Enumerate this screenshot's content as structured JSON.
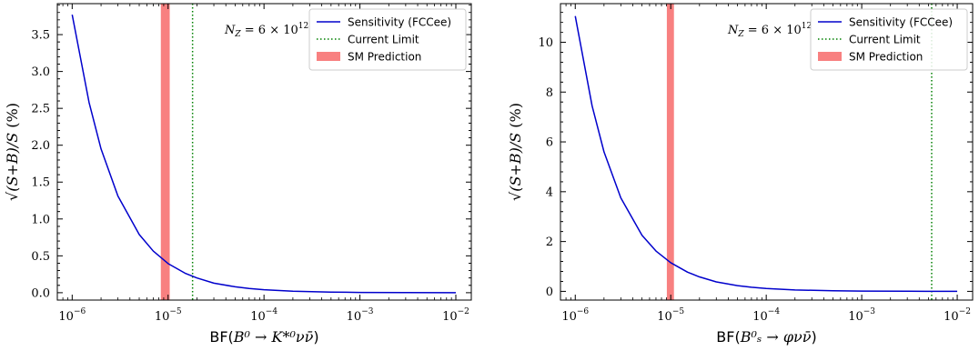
{
  "chart_data": [
    {
      "type": "line",
      "xscale": "log",
      "xlim": [
        7e-07,
        0.0145
      ],
      "ylim": [
        -0.1,
        3.92
      ],
      "xticks": [
        1e-06,
        1e-05,
        0.0001,
        0.001,
        0.01
      ],
      "xtick_labels": [
        {
          "base": "10",
          "exp": "−6"
        },
        {
          "base": "10",
          "exp": "−5"
        },
        {
          "base": "10",
          "exp": "−4"
        },
        {
          "base": "10",
          "exp": "−3"
        },
        {
          "base": "10",
          "exp": "−2"
        }
      ],
      "yticks": [
        0.0,
        0.5,
        1.0,
        1.5,
        2.0,
        2.5,
        3.0,
        3.5
      ],
      "ytick_labels": [
        "0.0",
        "0.5",
        "1.0",
        "1.5",
        "2.0",
        "2.5",
        "3.0",
        "3.5"
      ],
      "xlabel": {
        "prefix": "BF(",
        "math": "B⁰ → K*⁰νν̄",
        "suffix": ")"
      },
      "ylabel": {
        "math": "√(S+B)/S",
        "suffix": " (%)"
      },
      "annotation": {
        "lhs": "N",
        "sub": "Z",
        "rhs": " = 6 × 10",
        "exp": "12"
      },
      "legend": {
        "position": "top-right",
        "entries": [
          {
            "label": "Sensitivity (FCCee)",
            "style": "line",
            "color": "#0000cc"
          },
          {
            "label": "Current Limit",
            "style": "dotted",
            "color": "#008000"
          },
          {
            "label": "SM Prediction",
            "style": "patch",
            "color": "#f88080"
          }
        ]
      },
      "series": [
        {
          "name": "Sensitivity (FCCee)",
          "kind": "curve",
          "color": "#0000cc",
          "x": [
            1e-06,
            1.5e-06,
            2e-06,
            3e-06,
            5e-06,
            7e-06,
            1e-05,
            1.5e-05,
            2e-05,
            3e-05,
            5e-05,
            7e-05,
            0.0001,
            0.0002,
            0.0005,
            0.001,
            0.003,
            0.01
          ],
          "y": [
            3.77,
            2.58,
            1.95,
            1.31,
            0.79,
            0.565,
            0.395,
            0.265,
            0.2,
            0.13,
            0.08,
            0.057,
            0.04,
            0.02,
            0.008,
            0.004,
            0.0013,
            0.0004
          ]
        },
        {
          "name": "Current Limit",
          "kind": "vline",
          "style": "dotted",
          "color": "#008000",
          "x": 1.8e-05
        },
        {
          "name": "SM Prediction",
          "kind": "vband",
          "color": "#f88080",
          "x": [
            8.4e-06,
            1.04e-05
          ]
        }
      ]
    },
    {
      "type": "line",
      "xscale": "log",
      "xlim": [
        7e-07,
        0.0145
      ],
      "ylim": [
        -0.35,
        11.55
      ],
      "xticks": [
        1e-06,
        1e-05,
        0.0001,
        0.001,
        0.01
      ],
      "xtick_labels": [
        {
          "base": "10",
          "exp": "−6"
        },
        {
          "base": "10",
          "exp": "−5"
        },
        {
          "base": "10",
          "exp": "−4"
        },
        {
          "base": "10",
          "exp": "−3"
        },
        {
          "base": "10",
          "exp": "−2"
        }
      ],
      "yticks": [
        0,
        2,
        4,
        6,
        8,
        10
      ],
      "ytick_labels": [
        "0",
        "2",
        "4",
        "6",
        "8",
        "10"
      ],
      "xlabel": {
        "prefix": "BF(",
        "math": "B⁰ₛ → φνν̄",
        "suffix": ")"
      },
      "ylabel": {
        "math": "√(S+B)/S",
        "suffix": " (%)"
      },
      "annotation": {
        "lhs": "N",
        "sub": "Z",
        "rhs": " = 6 × 10",
        "exp": "12"
      },
      "legend": {
        "position": "top-right",
        "entries": [
          {
            "label": "Sensitivity (FCCee)",
            "style": "line",
            "color": "#0000cc"
          },
          {
            "label": "Current Limit",
            "style": "dotted",
            "color": "#008000"
          },
          {
            "label": "SM Prediction",
            "style": "patch",
            "color": "#f88080"
          }
        ]
      },
      "series": [
        {
          "name": "Sensitivity (FCCee)",
          "kind": "curve",
          "color": "#0000cc",
          "x": [
            1e-06,
            1.5e-06,
            2e-06,
            3e-06,
            5e-06,
            7e-06,
            1e-05,
            1.5e-05,
            2e-05,
            3e-05,
            5e-05,
            7e-05,
            0.0001,
            0.0002,
            0.0005,
            0.001,
            0.003,
            0.01
          ],
          "y": [
            11.05,
            7.45,
            5.6,
            3.75,
            2.25,
            1.62,
            1.15,
            0.77,
            0.58,
            0.38,
            0.23,
            0.165,
            0.115,
            0.058,
            0.023,
            0.012,
            0.004,
            0.0012
          ]
        },
        {
          "name": "Current Limit",
          "kind": "vline",
          "style": "dotted",
          "color": "#008000",
          "x": 0.0054
        },
        {
          "name": "SM Prediction",
          "kind": "vband",
          "color": "#f88080",
          "x": [
            9.1e-06,
            1.08e-05
          ]
        }
      ]
    }
  ]
}
